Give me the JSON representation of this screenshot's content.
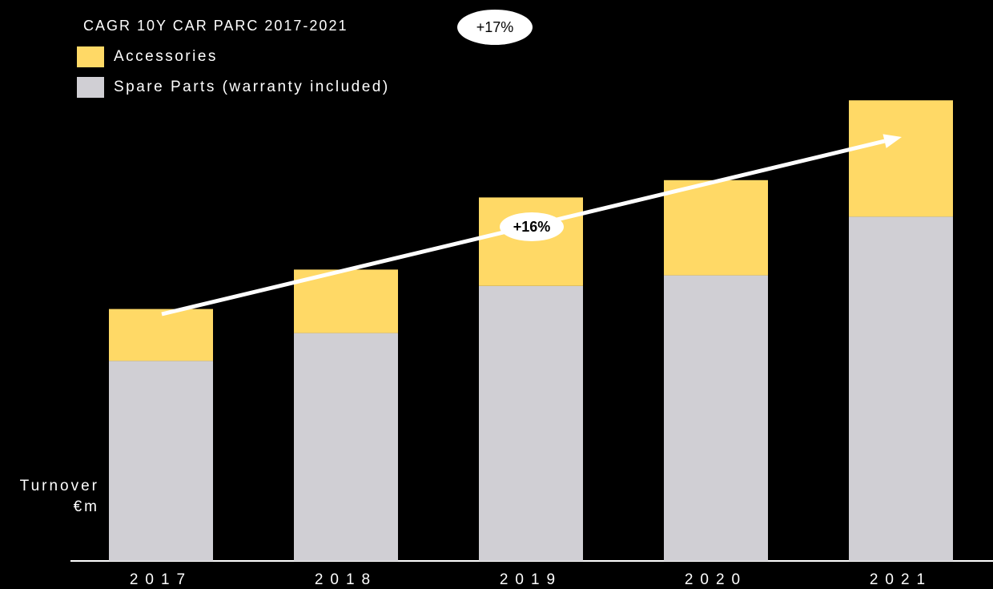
{
  "header": {
    "cagr_label": "CAGR 10Y CAR PARC  2017-2021",
    "cagr_value": "+17%"
  },
  "legend": {
    "items": [
      {
        "label": "Accessories",
        "color": "#FFD966"
      },
      {
        "label": "Spare Parts (warranty included)",
        "color": "#D0CFD4"
      }
    ]
  },
  "growth_label": "+16%",
  "chart_data": {
    "type": "bar",
    "stacked": true,
    "categories": [
      "2017",
      "2018",
      "2019",
      "2020",
      "2021"
    ],
    "series": [
      {
        "name": "Spare Parts (warranty included)",
        "color": "#D0CFD4",
        "values": [
          208,
          237,
          286,
          297,
          358
        ]
      },
      {
        "name": "Accessories",
        "color": "#FFD966",
        "values": [
          54,
          66,
          92,
          99,
          121
        ]
      }
    ],
    "title": "",
    "xlabel": "",
    "ylabel": "Turnover €m",
    "ylim": [
      0,
      500
    ],
    "grid": false,
    "legend_position": "top-left"
  }
}
